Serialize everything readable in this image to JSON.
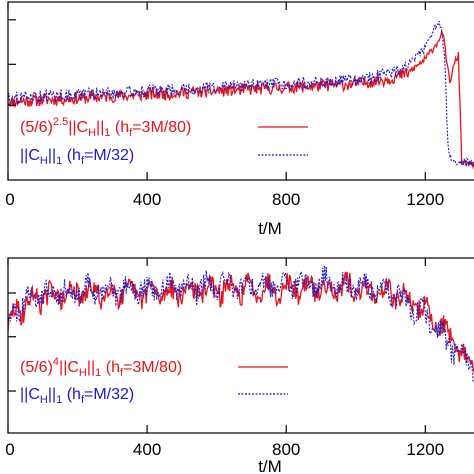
{
  "chart_data": [
    {
      "type": "line",
      "xlabel": "t/M",
      "x_ticks": [
        "0",
        "400",
        "800",
        "1200"
      ],
      "xlim": [
        0,
        1340
      ],
      "ylim": [
        0,
        1
      ],
      "colors": {
        "red": "#e8141b",
        "blue": "#1a1ad0"
      },
      "legend": [
        {
          "label": "(5/6)^2.5||C_H||_1 (h_f=3M/80)",
          "text": "(5/6)",
          "sup": "2.5",
          "mid": "||C",
          "sub": "H",
          "mid2": "||",
          "sub2": "1",
          "tail": " (h",
          "sub3": "f",
          "end": "=3M/80)",
          "style": "solid",
          "color": "#e8141b"
        },
        {
          "label": "||C_H||_1 (h_f=M/32)",
          "text": "",
          "sup": "",
          "mid": "||C",
          "sub": "H",
          "mid2": "||",
          "sub2": "1",
          "tail": " (h",
          "sub3": "f",
          "end": "=M/32)",
          "style": "dotted",
          "color": "#1a1ad0"
        }
      ],
      "series": [
        {
          "style": "solid",
          "color": "#e8141b",
          "x": [
            0,
            100,
            200,
            300,
            400,
            500,
            600,
            700,
            800,
            900,
            1000,
            1100,
            1150,
            1200,
            1230,
            1250,
            1270,
            1285,
            1295,
            1305,
            1340
          ],
          "y": [
            0.44,
            0.45,
            0.46,
            0.47,
            0.48,
            0.49,
            0.5,
            0.51,
            0.52,
            0.53,
            0.54,
            0.57,
            0.6,
            0.68,
            0.76,
            0.83,
            0.55,
            0.66,
            0.7,
            0.1,
            0.08
          ]
        },
        {
          "style": "dotted",
          "color": "#1a1ad0",
          "x": [
            0,
            100,
            200,
            300,
            400,
            500,
            600,
            700,
            800,
            900,
            1000,
            1100,
            1150,
            1200,
            1240,
            1255,
            1265,
            1275,
            1300,
            1340
          ],
          "y": [
            0.46,
            0.47,
            0.48,
            0.49,
            0.5,
            0.51,
            0.52,
            0.53,
            0.54,
            0.55,
            0.56,
            0.6,
            0.65,
            0.74,
            0.9,
            0.72,
            0.2,
            0.1,
            0.1,
            0.1
          ]
        }
      ]
    },
    {
      "type": "line",
      "xlabel": "t/M",
      "x_ticks": [
        "0",
        "400",
        "800",
        "1200"
      ],
      "xlim": [
        0,
        1340
      ],
      "ylim": [
        0,
        1
      ],
      "legend": [
        {
          "label": "(5/6)^4||C_H||_1 (h_f=3M/80)",
          "text": "(5/6)",
          "sup": "4",
          "mid": "||C",
          "sub": "H",
          "mid2": "||",
          "sub2": "1",
          "tail": " (h",
          "sub3": "f",
          "end": "=3M/80)",
          "style": "solid",
          "color": "#e8141b"
        },
        {
          "label": "||C_H||_1 (h_f=M/32)",
          "text": "",
          "sup": "",
          "mid": "||C",
          "sub": "H",
          "mid2": "||",
          "sub2": "1",
          "tail": " (h",
          "sub3": "f",
          "end": "=M/32)",
          "style": "dotted",
          "color": "#1a1ad0"
        }
      ],
      "series": [
        {
          "style": "solid",
          "color": "#e8141b",
          "x": [
            0,
            20,
            50,
            100,
            200,
            300,
            400,
            500,
            600,
            700,
            800,
            900,
            1000,
            1100,
            1150,
            1200,
            1250,
            1300,
            1340
          ],
          "y": [
            0.6,
            0.68,
            0.74,
            0.78,
            0.8,
            0.8,
            0.8,
            0.81,
            0.82,
            0.82,
            0.83,
            0.83,
            0.82,
            0.8,
            0.76,
            0.7,
            0.6,
            0.45,
            0.38
          ]
        },
        {
          "style": "dotted",
          "color": "#1a1ad0",
          "x": [
            0,
            20,
            50,
            100,
            200,
            300,
            400,
            500,
            600,
            700,
            800,
            900,
            1000,
            1100,
            1150,
            1200,
            1250,
            1300,
            1340
          ],
          "y": [
            0.62,
            0.7,
            0.76,
            0.8,
            0.82,
            0.82,
            0.82,
            0.83,
            0.84,
            0.84,
            0.85,
            0.85,
            0.84,
            0.81,
            0.74,
            0.66,
            0.55,
            0.44,
            0.4
          ]
        }
      ]
    }
  ]
}
